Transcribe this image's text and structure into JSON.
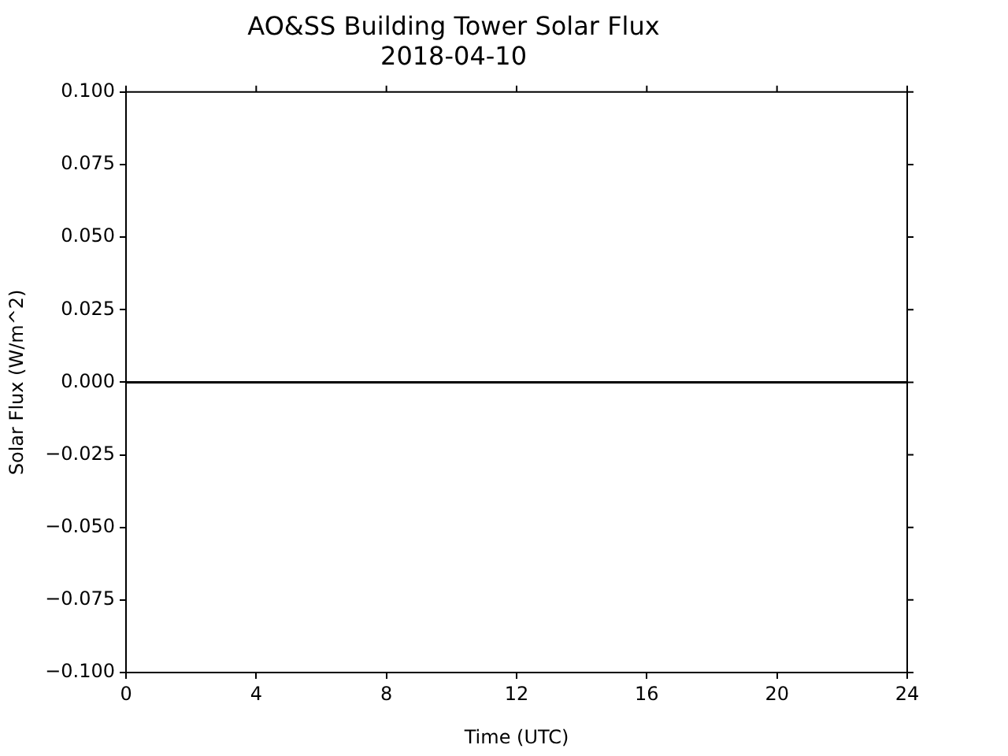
{
  "chart_data": {
    "type": "line",
    "title": "AO&SS Building Tower Solar Flux",
    "subtitle": "2018-04-10",
    "xlabel": "Time (UTC)",
    "ylabel": "Solar Flux (W/m^2)",
    "x": [
      0,
      24
    ],
    "series": [
      {
        "color": "#000000",
        "values": [
          0,
          0
        ]
      }
    ],
    "xlim": [
      0,
      24
    ],
    "xticks": [
      0,
      4,
      8,
      12,
      16,
      20,
      24
    ],
    "ylim": [
      -0.1,
      0.1
    ],
    "yticks": [
      {
        "value": -0.1,
        "label": "−0.100"
      },
      {
        "value": -0.075,
        "label": "−0.075"
      },
      {
        "value": -0.05,
        "label": "−0.050"
      },
      {
        "value": -0.025,
        "label": "−0.025"
      },
      {
        "value": 0,
        "label": "0.000"
      },
      {
        "value": 0.025,
        "label": "0.025"
      },
      {
        "value": 0.05,
        "label": "0.050"
      },
      {
        "value": 0.075,
        "label": "0.075"
      },
      {
        "value": 0.1,
        "label": "0.100"
      }
    ],
    "grid": false,
    "legend": false,
    "marker": "none",
    "line_style": "solid"
  }
}
